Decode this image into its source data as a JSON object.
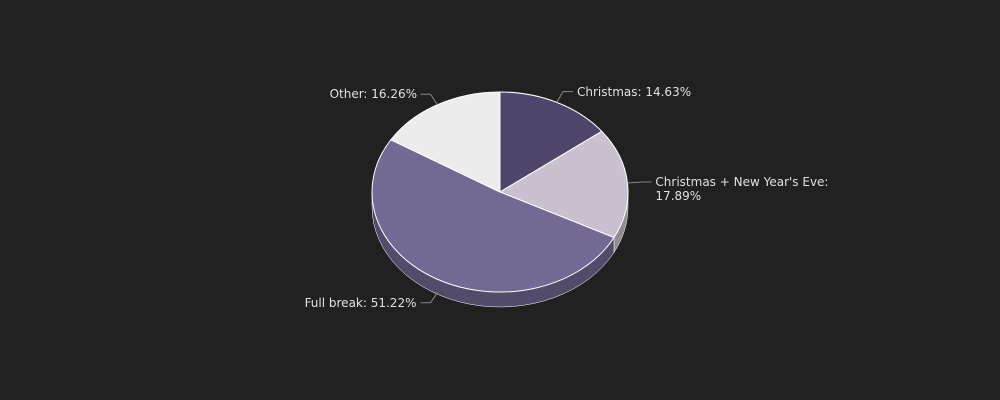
{
  "chart_data": {
    "type": "pie",
    "categories": [
      "Christmas",
      "Christmas + New Year's Eve",
      "Full break",
      "Other"
    ],
    "values": [
      14.63,
      17.89,
      51.22,
      16.26
    ],
    "value_labels": [
      "Christmas: 14.63%",
      "Christmas + New Year's Eve: 17.89%",
      "Full break: 51.22%",
      "Other: 16.26%"
    ],
    "colors": [
      "#4f4469",
      "#c9c1cf",
      "#746894",
      "#ececec"
    ],
    "three_d": true
  }
}
